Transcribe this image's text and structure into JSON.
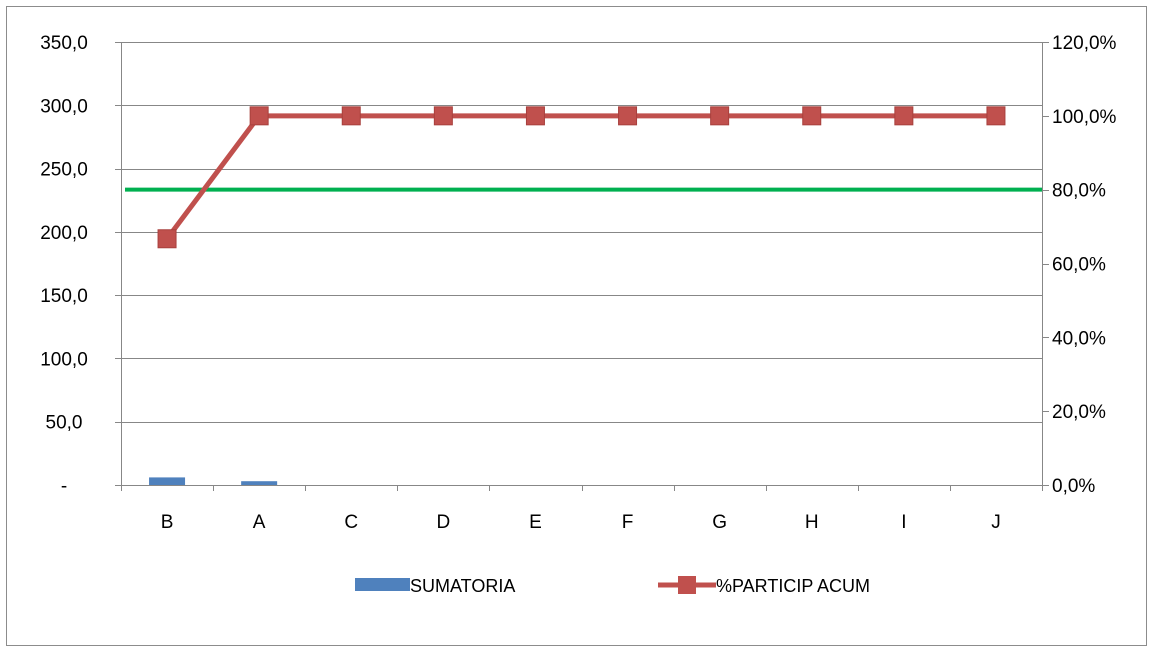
{
  "chart_data": {
    "type": "bar",
    "title": "",
    "categories": [
      "B",
      "A",
      "C",
      "D",
      "E",
      "F",
      "G",
      "H",
      "I",
      "J"
    ],
    "series": [
      {
        "name": "SUMATORIA",
        "type": "bar",
        "axis": "left",
        "color": "#4F81BD",
        "values": [
          6,
          3,
          0,
          0,
          0,
          0,
          0,
          0,
          0,
          0
        ]
      },
      {
        "name": "%PARTICIP ACUM",
        "type": "line",
        "axis": "right",
        "color": "#C0504D",
        "marker": "square",
        "values": [
          0.667,
          1.0,
          1.0,
          1.0,
          1.0,
          1.0,
          1.0,
          1.0,
          1.0,
          1.0
        ]
      }
    ],
    "reference_line": {
      "axis": "right",
      "value": 0.8,
      "color": "#00B050"
    },
    "y_left": {
      "ylim": [
        0,
        350
      ],
      "ticks": [
        0,
        50,
        100,
        150,
        200,
        250,
        300,
        350
      ],
      "tick_labels": [
        "-",
        "50,0",
        "100,0",
        "150,0",
        "200,0",
        "250,0",
        "300,0",
        "350,0"
      ]
    },
    "y_right": {
      "ylim": [
        0,
        1.2
      ],
      "ticks": [
        0,
        0.2,
        0.4,
        0.6,
        0.8,
        1.0,
        1.2
      ],
      "tick_labels": [
        "0,0%",
        "20,0%",
        "40,0%",
        "60,0%",
        "80,0%",
        "100,0%",
        "120,0%"
      ]
    },
    "grid": true,
    "legend": {
      "position": "bottom",
      "entries": [
        "SUMATORIA",
        "%PARTICIP ACUM"
      ]
    }
  }
}
